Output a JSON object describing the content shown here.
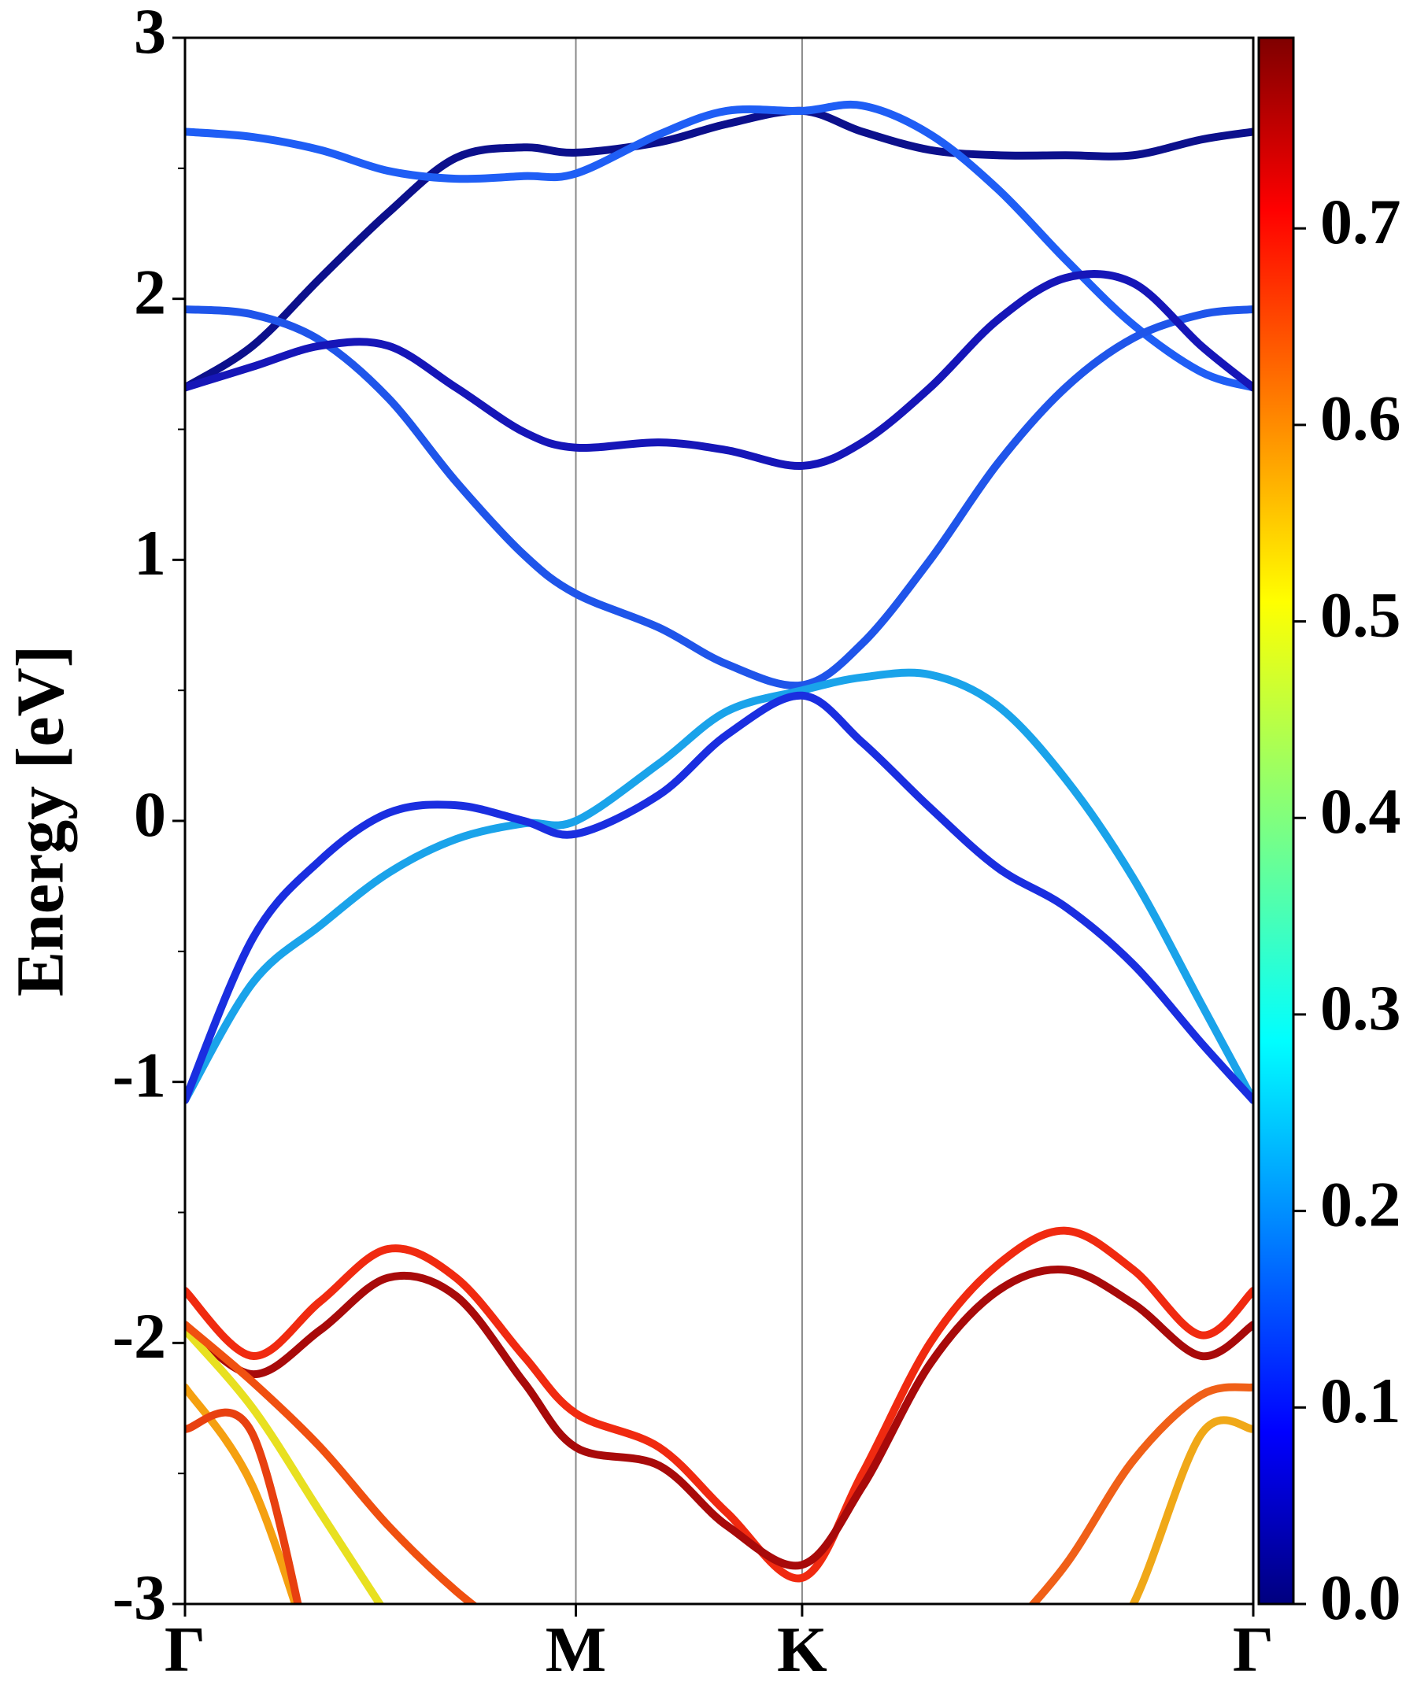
{
  "chart_data": {
    "type": "line",
    "ylabel": "Energy [eV]",
    "x": [
      0,
      0.1,
      0.2,
      0.3,
      0.4,
      0.5,
      0.577,
      0.7,
      0.8,
      0.911,
      1.0,
      1.1,
      1.2,
      1.3,
      1.4,
      1.5,
      1.577
    ],
    "xlim": [
      0,
      1.577
    ],
    "xticks": [
      {
        "value": 0,
        "label": "Γ"
      },
      {
        "value": 0.577,
        "label": "M"
      },
      {
        "value": 0.911,
        "label": "K"
      },
      {
        "value": 1.577,
        "label": "Γ"
      }
    ],
    "xgrid": true,
    "ylim": [
      -3,
      3
    ],
    "yticks": [
      -3,
      -2,
      -1,
      0,
      1,
      2,
      3
    ],
    "yminorticks": [
      -2.5,
      -1.5,
      -0.5,
      0.5,
      1.5,
      2.5
    ],
    "series": [
      {
        "color": "#0c108c",
        "values": [
          1.66,
          1.82,
          2.08,
          2.33,
          2.54,
          2.58,
          2.56,
          2.6,
          2.67,
          2.72,
          2.64,
          2.57,
          2.55,
          2.55,
          2.55,
          2.61,
          2.64
        ]
      },
      {
        "color": "#1f5ef5",
        "values": [
          2.64,
          2.62,
          2.57,
          2.49,
          2.46,
          2.47,
          2.48,
          2.63,
          2.72,
          2.72,
          2.74,
          2.63,
          2.42,
          2.15,
          1.9,
          1.72,
          1.66
        ]
      },
      {
        "color": "#1f55ea",
        "values": [
          1.96,
          1.94,
          1.84,
          1.62,
          1.3,
          1.02,
          0.87,
          0.74,
          0.6,
          0.52,
          0.68,
          1.0,
          1.37,
          1.66,
          1.85,
          1.94,
          1.96
        ]
      },
      {
        "color": "#1616b8",
        "values": [
          1.66,
          1.74,
          1.82,
          1.82,
          1.66,
          1.49,
          1.43,
          1.45,
          1.42,
          1.36,
          1.45,
          1.66,
          1.92,
          2.08,
          2.06,
          1.82,
          1.66
        ]
      },
      {
        "color": "#1aa3ea",
        "values": [
          -1.07,
          -0.62,
          -0.4,
          -0.2,
          -0.07,
          -0.01,
          0.0,
          0.22,
          0.42,
          0.5,
          0.55,
          0.56,
          0.44,
          0.16,
          -0.22,
          -0.7,
          -1.07
        ]
      },
      {
        "color": "#1a2ee0",
        "values": [
          -1.07,
          -0.45,
          -0.15,
          0.03,
          0.06,
          0.0,
          -0.05,
          0.1,
          0.33,
          0.48,
          0.3,
          0.05,
          -0.18,
          -0.33,
          -0.55,
          -0.85,
          -1.07
        ]
      },
      {
        "color": "#f02a10",
        "values": [
          -1.8,
          -2.05,
          -1.84,
          -1.64,
          -1.75,
          -2.05,
          -2.27,
          -2.4,
          -2.65,
          -2.9,
          -2.5,
          -2.0,
          -1.7,
          -1.57,
          -1.72,
          -1.97,
          -1.8
        ]
      },
      {
        "color": "#a80a0a",
        "values": [
          -1.93,
          -2.12,
          -1.95,
          -1.75,
          -1.82,
          -2.15,
          -2.4,
          -2.47,
          -2.7,
          -2.85,
          -2.55,
          -2.08,
          -1.8,
          -1.72,
          -1.85,
          -2.05,
          -1.93
        ]
      },
      {
        "color": "#f5a010",
        "values": [
          -2.17,
          -2.55,
          -3.3,
          null,
          null,
          null,
          null,
          null,
          null,
          null,
          null,
          null,
          null,
          null,
          null,
          null,
          null
        ]
      },
      {
        "color": "#e84010",
        "values": [
          -2.33,
          -2.35,
          -3.4,
          null,
          null,
          null,
          null,
          null,
          null,
          null,
          null,
          null,
          null,
          null,
          null,
          null,
          null
        ]
      },
      {
        "color": "#e8e020",
        "values": [
          -1.95,
          -2.25,
          -2.65,
          -3.05,
          null,
          null,
          null,
          null,
          null,
          null,
          null,
          null,
          null,
          null,
          null,
          null,
          null
        ]
      },
      {
        "color": "#f05010",
        "values": [
          -1.93,
          -2.15,
          -2.4,
          -2.7,
          -2.95,
          -3.15,
          null,
          null,
          null,
          null,
          null,
          null,
          null,
          null,
          null,
          null,
          null
        ]
      },
      {
        "color": "#f06018",
        "values": [
          null,
          null,
          null,
          null,
          null,
          null,
          null,
          null,
          null,
          null,
          null,
          null,
          -3.15,
          -2.85,
          -2.45,
          -2.2,
          -2.17
        ]
      },
      {
        "color": "#f0a818",
        "values": [
          null,
          null,
          null,
          null,
          null,
          null,
          null,
          null,
          null,
          null,
          null,
          null,
          null,
          -3.4,
          -3.0,
          -2.35,
          -2.33
        ]
      }
    ],
    "colorbar": {
      "cmap": "jet",
      "clim": [
        0,
        0.797
      ],
      "ticks": [
        {
          "value": 0,
          "label": "0.0"
        },
        0.1,
        0.2,
        0.3,
        0.4,
        0.5,
        0.6,
        0.7
      ]
    }
  }
}
